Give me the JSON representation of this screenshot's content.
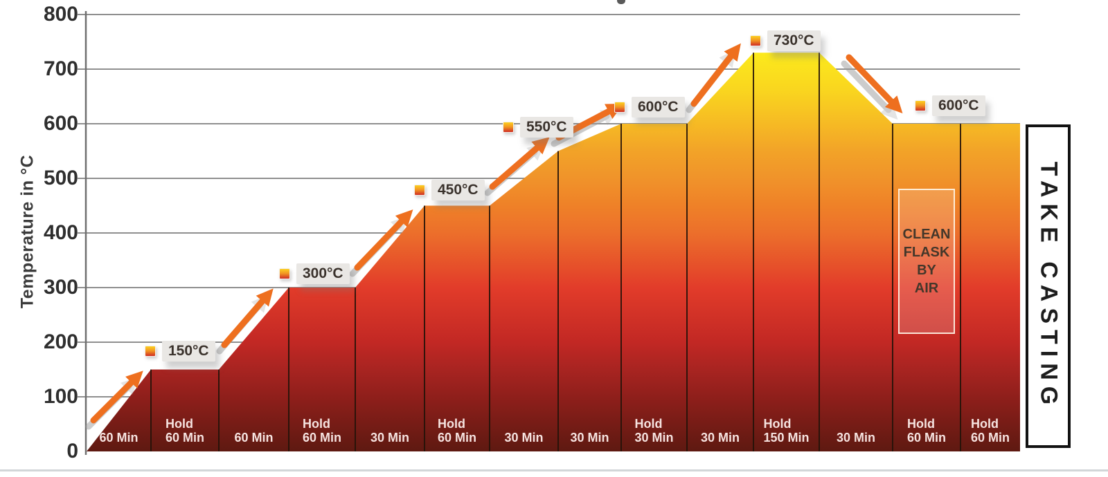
{
  "y_axis": {
    "title": "Temperature in °C",
    "ticks": [
      800,
      700,
      600,
      500,
      400,
      300,
      200,
      100,
      0
    ]
  },
  "chart_data": {
    "type": "area",
    "title": "",
    "xlabel": "",
    "ylabel": "Temperature in °C",
    "ylim": [
      0,
      800
    ],
    "yticks": [
      0,
      100,
      200,
      300,
      400,
      500,
      600,
      700,
      800
    ],
    "grid": true,
    "x_unit": "minutes",
    "segments": [
      {
        "lines": [
          "60 Min"
        ],
        "kind": "ramp",
        "from": 0,
        "to": 150,
        "duration_min": 60
      },
      {
        "lines": [
          "Hold",
          "60 Min"
        ],
        "kind": "hold",
        "from": 150,
        "to": 150,
        "duration_min": 60
      },
      {
        "lines": [
          "60 Min"
        ],
        "kind": "ramp",
        "from": 150,
        "to": 300,
        "duration_min": 60
      },
      {
        "lines": [
          "Hold",
          "60 Min"
        ],
        "kind": "hold",
        "from": 300,
        "to": 300,
        "duration_min": 60
      },
      {
        "lines": [
          "30 Min"
        ],
        "kind": "ramp",
        "from": 300,
        "to": 450,
        "duration_min": 30
      },
      {
        "lines": [
          "Hold",
          "60 Min"
        ],
        "kind": "hold",
        "from": 450,
        "to": 450,
        "duration_min": 60
      },
      {
        "lines": [
          "30 Min"
        ],
        "kind": "ramp",
        "from": 450,
        "to": 550,
        "duration_min": 30
      },
      {
        "lines": [
          "30 Min"
        ],
        "kind": "ramp",
        "from": 550,
        "to": 600,
        "duration_min": 30
      },
      {
        "lines": [
          "Hold",
          "30 Min"
        ],
        "kind": "hold",
        "from": 600,
        "to": 600,
        "duration_min": 30
      },
      {
        "lines": [
          "30 Min"
        ],
        "kind": "ramp",
        "from": 600,
        "to": 730,
        "duration_min": 30
      },
      {
        "lines": [
          "Hold",
          "150 Min"
        ],
        "kind": "hold",
        "from": 730,
        "to": 730,
        "duration_min": 150
      },
      {
        "lines": [
          "30 Min"
        ],
        "kind": "ramp",
        "from": 730,
        "to": 600,
        "duration_min": 30
      },
      {
        "lines": [
          "Hold",
          "60 Min"
        ],
        "kind": "hold",
        "from": 600,
        "to": 600,
        "duration_min": 60
      },
      {
        "lines": [
          "Hold",
          "60 Min"
        ],
        "kind": "hold",
        "from": 600,
        "to": 600,
        "duration_min": 60
      }
    ],
    "point_labels": [
      {
        "text": "150°C",
        "temp": 150
      },
      {
        "text": "300°C",
        "temp": 300
      },
      {
        "text": "450°C",
        "temp": 450
      },
      {
        "text": "550°C",
        "temp": 550
      },
      {
        "text": "600°C",
        "temp": 600
      },
      {
        "text": "730°C",
        "temp": 730
      },
      {
        "text": "600°C",
        "temp": 600
      }
    ],
    "annotations": [
      "CLEAN FLASK BY AIR",
      "TAKE CASTING"
    ]
  },
  "annotations": {
    "clean_flask": {
      "lines": [
        "CLEAN",
        "FLASK",
        "BY",
        "AIR"
      ]
    },
    "take_casting": "TAKE CASTING"
  },
  "colors": {
    "background": "#ffffff",
    "gridline": "#8f8f8f",
    "axis_line": "#6f6f6f",
    "tick_text": "#2e2e2e",
    "segment_label_text": "#f6e3e0",
    "separator": "#241309",
    "arrow": "#ee6f1f",
    "arrow_shadow": "#9b9b9b",
    "temp_label_bg": "#e9e7e4",
    "temp_label_text": "#3a322c",
    "bottom_divider": "#d2d6d8",
    "heat_scale": [
      {
        "t": 0,
        "c": "#5e1911"
      },
      {
        "t": 100,
        "c": "#8f1f1b"
      },
      {
        "t": 150,
        "c": "#a82421"
      },
      {
        "t": 200,
        "c": "#c22824"
      },
      {
        "t": 300,
        "c": "#e23c2a"
      },
      {
        "t": 400,
        "c": "#ec6f2b"
      },
      {
        "t": 450,
        "c": "#ef8128"
      },
      {
        "t": 500,
        "c": "#f0932a"
      },
      {
        "t": 550,
        "c": "#f2a328"
      },
      {
        "t": 600,
        "c": "#f6ba24"
      },
      {
        "t": 660,
        "c": "#f9d51f"
      },
      {
        "t": 730,
        "c": "#fcea1c"
      }
    ]
  }
}
